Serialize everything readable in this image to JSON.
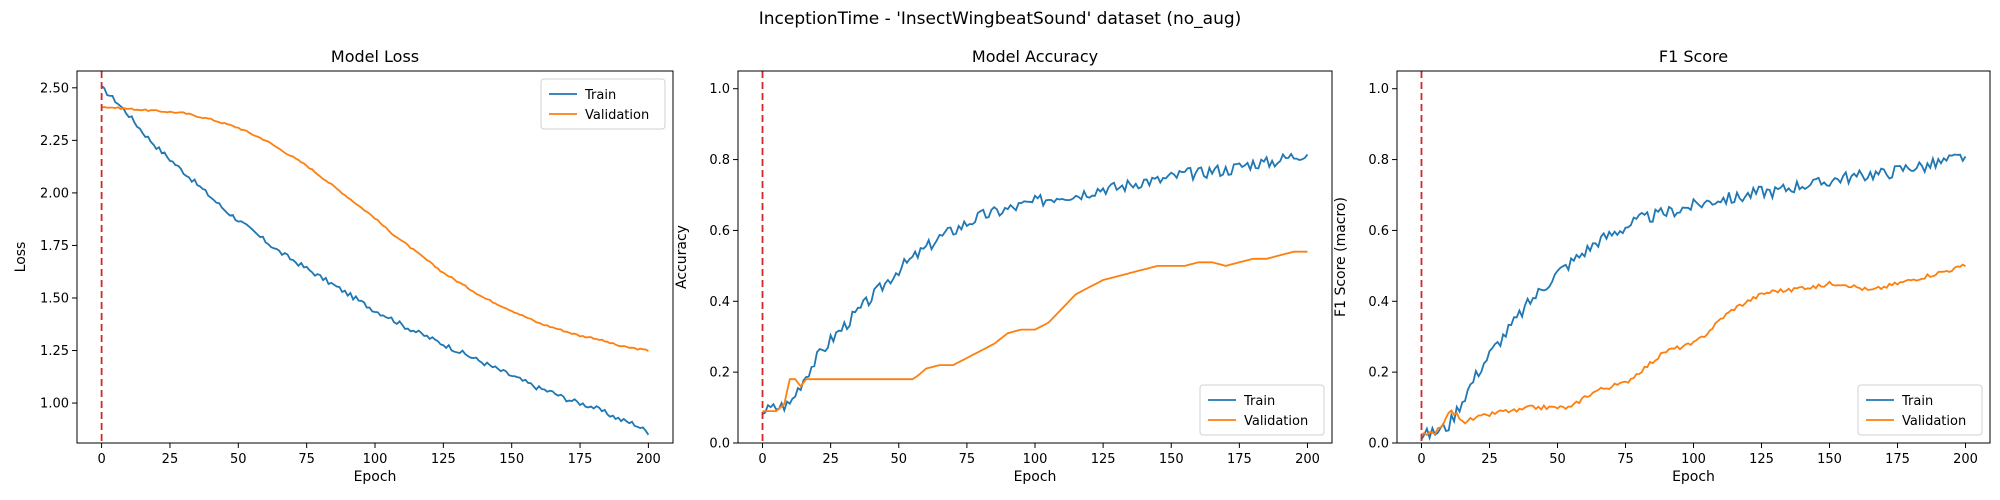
{
  "figure": {
    "suptitle": "InceptionTime - 'InsectWingbeatSound' dataset (no_aug)"
  },
  "colors": {
    "train": "#1f77b4",
    "validation": "#ff7f0e",
    "marker_line": "#d62728",
    "axes": "#000000"
  },
  "chart_data": [
    {
      "type": "line",
      "title": "Model Loss",
      "xlabel": "Epoch",
      "ylabel": "Loss",
      "xlim": [
        -9,
        209
      ],
      "ylim": [
        0.81,
        2.58
      ],
      "xticks": [
        0,
        25,
        50,
        75,
        100,
        125,
        150,
        175,
        200
      ],
      "yticks": [
        1.0,
        1.25,
        1.5,
        1.75,
        2.0,
        2.25,
        2.5
      ],
      "ytick_labels": [
        "1.00",
        "1.25",
        "1.50",
        "1.75",
        "2.00",
        "2.25",
        "2.50"
      ],
      "grid": false,
      "legend_position": "upper right",
      "vline_x": 0,
      "series": [
        {
          "name": "Train",
          "x": [
            0,
            5,
            10,
            15,
            20,
            25,
            30,
            35,
            40,
            45,
            50,
            55,
            60,
            65,
            70,
            75,
            80,
            85,
            90,
            95,
            100,
            105,
            110,
            115,
            120,
            125,
            130,
            135,
            140,
            145,
            150,
            155,
            160,
            165,
            170,
            175,
            180,
            185,
            190,
            195,
            200
          ],
          "y": [
            2.5,
            2.44,
            2.37,
            2.29,
            2.22,
            2.16,
            2.1,
            2.04,
            1.98,
            1.92,
            1.87,
            1.82,
            1.77,
            1.72,
            1.68,
            1.64,
            1.6,
            1.56,
            1.52,
            1.48,
            1.44,
            1.41,
            1.37,
            1.34,
            1.31,
            1.28,
            1.25,
            1.22,
            1.19,
            1.16,
            1.13,
            1.1,
            1.07,
            1.05,
            1.02,
            1.0,
            0.98,
            0.95,
            0.92,
            0.9,
            0.86
          ],
          "noise": 0.012
        },
        {
          "name": "Validation",
          "x": [
            0,
            10,
            20,
            30,
            40,
            50,
            55,
            60,
            65,
            70,
            75,
            80,
            85,
            90,
            95,
            100,
            105,
            110,
            115,
            120,
            125,
            130,
            135,
            140,
            145,
            150,
            155,
            160,
            165,
            170,
            175,
            180,
            185,
            190,
            195,
            200
          ],
          "y": [
            2.41,
            2.4,
            2.39,
            2.38,
            2.35,
            2.31,
            2.28,
            2.25,
            2.21,
            2.17,
            2.13,
            2.08,
            2.03,
            1.98,
            1.93,
            1.88,
            1.82,
            1.77,
            1.72,
            1.67,
            1.62,
            1.58,
            1.54,
            1.5,
            1.47,
            1.44,
            1.41,
            1.38,
            1.36,
            1.34,
            1.32,
            1.31,
            1.29,
            1.27,
            1.26,
            1.25
          ],
          "noise": 0.004
        }
      ]
    },
    {
      "type": "line",
      "title": "Model Accuracy",
      "xlabel": "Epoch",
      "ylabel": "Accuracy",
      "xlim": [
        -9,
        209
      ],
      "ylim": [
        0.0,
        1.05
      ],
      "xticks": [
        0,
        25,
        50,
        75,
        100,
        125,
        150,
        175,
        200
      ],
      "yticks": [
        0.0,
        0.2,
        0.4,
        0.6,
        0.8,
        1.0
      ],
      "ytick_labels": [
        "0.0",
        "0.2",
        "0.4",
        "0.6",
        "0.8",
        "1.0"
      ],
      "grid": false,
      "legend_position": "lower right",
      "vline_x": 0,
      "series": [
        {
          "name": "Train",
          "x": [
            0,
            5,
            10,
            15,
            20,
            25,
            30,
            35,
            40,
            45,
            50,
            55,
            60,
            65,
            70,
            75,
            80,
            85,
            90,
            95,
            100,
            105,
            110,
            115,
            120,
            125,
            130,
            135,
            140,
            145,
            150,
            155,
            160,
            165,
            170,
            175,
            180,
            185,
            190,
            195,
            200
          ],
          "y": [
            0.09,
            0.1,
            0.11,
            0.18,
            0.24,
            0.29,
            0.33,
            0.37,
            0.41,
            0.45,
            0.49,
            0.52,
            0.55,
            0.58,
            0.6,
            0.62,
            0.64,
            0.65,
            0.66,
            0.67,
            0.68,
            0.69,
            0.7,
            0.7,
            0.71,
            0.72,
            0.72,
            0.73,
            0.74,
            0.74,
            0.75,
            0.76,
            0.76,
            0.77,
            0.77,
            0.78,
            0.79,
            0.79,
            0.8,
            0.81,
            0.82
          ],
          "noise": 0.018
        },
        {
          "name": "Validation",
          "x": [
            0,
            5,
            8,
            10,
            12,
            14,
            16,
            20,
            30,
            40,
            50,
            55,
            57,
            60,
            65,
            70,
            75,
            80,
            85,
            90,
            95,
            100,
            105,
            110,
            115,
            120,
            125,
            130,
            135,
            140,
            145,
            150,
            155,
            160,
            165,
            170,
            175,
            180,
            185,
            190,
            195,
            200
          ],
          "y": [
            0.09,
            0.09,
            0.11,
            0.18,
            0.18,
            0.16,
            0.18,
            0.18,
            0.18,
            0.18,
            0.18,
            0.18,
            0.19,
            0.21,
            0.22,
            0.22,
            0.24,
            0.26,
            0.28,
            0.31,
            0.32,
            0.32,
            0.34,
            0.38,
            0.42,
            0.44,
            0.46,
            0.47,
            0.48,
            0.49,
            0.5,
            0.5,
            0.5,
            0.51,
            0.51,
            0.5,
            0.51,
            0.52,
            0.52,
            0.53,
            0.54,
            0.54
          ],
          "noise": 0.0
        }
      ]
    },
    {
      "type": "line",
      "title": "F1 Score",
      "xlabel": "Epoch",
      "ylabel": "F1 Score (macro)",
      "xlim": [
        -9,
        209
      ],
      "ylim": [
        0.0,
        1.05
      ],
      "xticks": [
        0,
        25,
        50,
        75,
        100,
        125,
        150,
        175,
        200
      ],
      "yticks": [
        0.0,
        0.2,
        0.4,
        0.6,
        0.8,
        1.0
      ],
      "ytick_labels": [
        "0.0",
        "0.2",
        "0.4",
        "0.6",
        "0.8",
        "1.0"
      ],
      "grid": false,
      "legend_position": "lower right",
      "vline_x": 0,
      "series": [
        {
          "name": "Train",
          "x": [
            0,
            5,
            10,
            15,
            20,
            25,
            30,
            35,
            40,
            45,
            50,
            55,
            60,
            65,
            70,
            75,
            80,
            85,
            90,
            95,
            100,
            105,
            110,
            115,
            120,
            125,
            130,
            135,
            140,
            145,
            150,
            155,
            160,
            165,
            170,
            175,
            180,
            185,
            190,
            195,
            200
          ],
          "y": [
            0.02,
            0.03,
            0.05,
            0.12,
            0.19,
            0.25,
            0.3,
            0.35,
            0.4,
            0.44,
            0.48,
            0.51,
            0.54,
            0.57,
            0.59,
            0.61,
            0.63,
            0.64,
            0.65,
            0.66,
            0.67,
            0.68,
            0.69,
            0.69,
            0.7,
            0.71,
            0.71,
            0.72,
            0.73,
            0.73,
            0.74,
            0.75,
            0.75,
            0.76,
            0.76,
            0.77,
            0.78,
            0.78,
            0.79,
            0.8,
            0.81
          ],
          "noise": 0.018
        },
        {
          "name": "Validation",
          "x": [
            0,
            5,
            8,
            10,
            13,
            16,
            20,
            25,
            30,
            35,
            40,
            45,
            50,
            55,
            60,
            65,
            70,
            75,
            80,
            85,
            90,
            95,
            100,
            105,
            110,
            115,
            120,
            125,
            130,
            135,
            140,
            145,
            150,
            155,
            160,
            165,
            170,
            175,
            180,
            185,
            190,
            195,
            200
          ],
          "y": [
            0.02,
            0.03,
            0.05,
            0.09,
            0.08,
            0.06,
            0.07,
            0.08,
            0.09,
            0.09,
            0.1,
            0.1,
            0.1,
            0.1,
            0.13,
            0.15,
            0.16,
            0.17,
            0.2,
            0.23,
            0.26,
            0.27,
            0.28,
            0.31,
            0.35,
            0.38,
            0.4,
            0.42,
            0.43,
            0.43,
            0.44,
            0.44,
            0.45,
            0.45,
            0.44,
            0.43,
            0.44,
            0.45,
            0.46,
            0.47,
            0.48,
            0.49,
            0.5
          ],
          "noise": 0.006
        }
      ]
    }
  ]
}
